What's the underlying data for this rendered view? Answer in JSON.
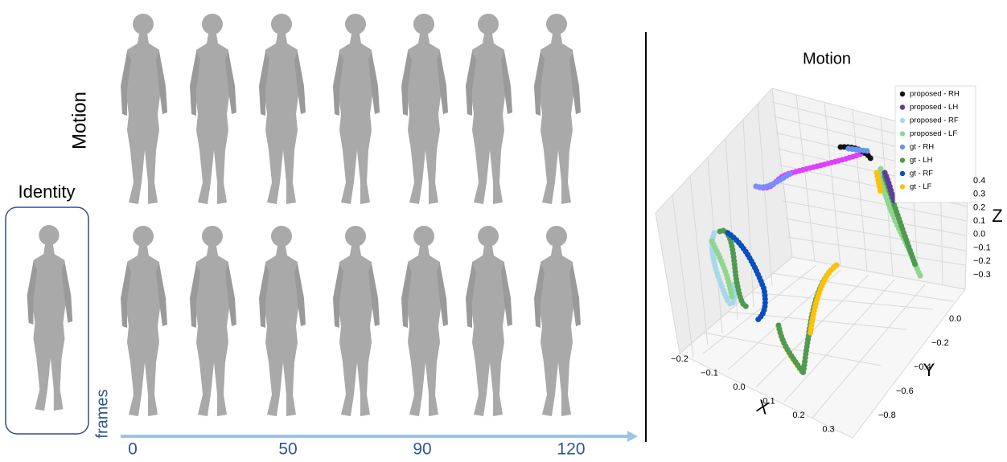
{
  "left": {
    "motion_label": "Motion",
    "identity_label": "Identity",
    "frames_label": "frames",
    "frame_ticks": [
      "0",
      "50",
      "90",
      "120"
    ]
  },
  "plot": {
    "title": "Motion",
    "legend": [
      {
        "name": "proposed - RH",
        "color": "#111111"
      },
      {
        "name": "proposed - LH",
        "color": "#5e3c99"
      },
      {
        "name": "proposed - RF",
        "color": "#a6d8ee"
      },
      {
        "name": "proposed - LF",
        "color": "#8fd68f"
      },
      {
        "name": "gt - RH",
        "color": "#6495ed"
      },
      {
        "name": "gt - LH",
        "color": "#4f9a4f"
      },
      {
        "name": "gt - RF",
        "color": "#0a4fc0"
      },
      {
        "name": "gt - LF",
        "color": "#ffc107"
      }
    ],
    "x_label": "X",
    "y_label": "Y",
    "z_label": "Z",
    "xticks": [
      "−0.2",
      "−0.1",
      "0.0",
      "0.1",
      "0.2",
      "0.3"
    ],
    "yticks": [
      "0.0",
      "−0.2",
      "−0.4",
      "−0.6",
      "−0.8"
    ],
    "zticks": [
      "0.4",
      "0.3",
      "0.2",
      "0.1",
      "0.0",
      "−0.1",
      "−0.2",
      "−0.3"
    ]
  }
}
